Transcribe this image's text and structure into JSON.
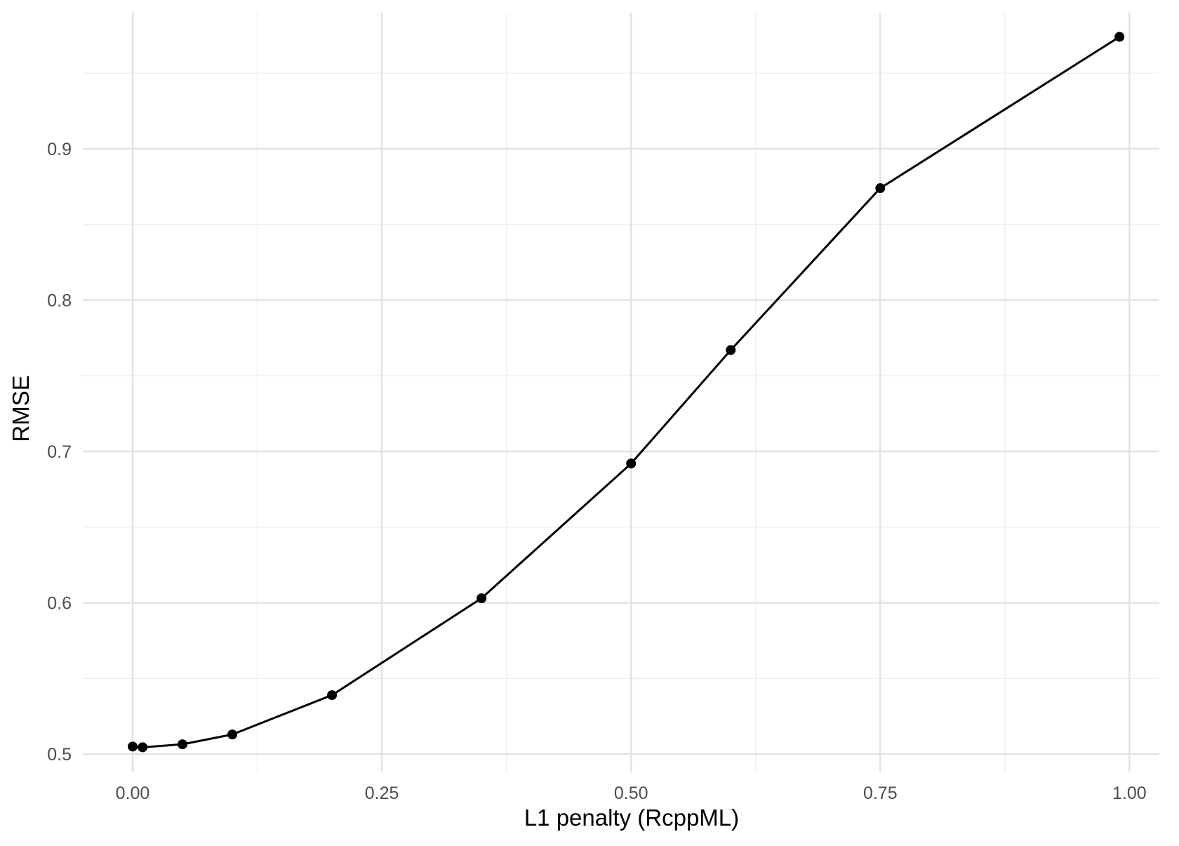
{
  "chart_data": {
    "type": "line",
    "xlabel": "L1 penalty (RcppML)",
    "ylabel": "RMSE",
    "xlim": [
      -0.05,
      1.03
    ],
    "ylim": [
      0.488,
      0.99
    ],
    "x_ticks": [
      0.0,
      0.25,
      0.5,
      0.75,
      1.0
    ],
    "x_tick_labels": [
      "0.00",
      "0.25",
      "0.50",
      "0.75",
      "1.00"
    ],
    "x_minor_ticks": [
      0.125,
      0.375,
      0.625,
      0.875
    ],
    "y_ticks": [
      0.5,
      0.6,
      0.7,
      0.8,
      0.9
    ],
    "y_tick_labels": [
      "0.5",
      "0.6",
      "0.7",
      "0.8",
      "0.9"
    ],
    "y_minor_ticks": [
      0.55,
      0.65,
      0.75,
      0.85,
      0.95
    ],
    "grid": true,
    "legend": "none",
    "series": [
      {
        "color": "#000000",
        "x": [
          0.0,
          0.01,
          0.05,
          0.1,
          0.2,
          0.35,
          0.5,
          0.6,
          0.75,
          0.99
        ],
        "y": [
          0.505,
          0.5045,
          0.5065,
          0.513,
          0.539,
          0.603,
          0.692,
          0.767,
          0.874,
          0.974
        ]
      }
    ]
  }
}
